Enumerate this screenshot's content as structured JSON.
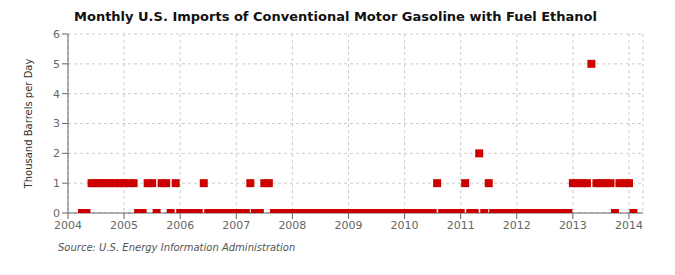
{
  "chart_data": {
    "type": "scatter",
    "title": "Monthly U.S. Imports of Conventional Motor Gasoline with Fuel Ethanol",
    "ylabel": "Thousand Barrels per Day",
    "annotations": [
      "Source: U.S. Energy Information Administration"
    ],
    "color": "#CC0000",
    "marker": "square",
    "grid": true,
    "xlim": [
      2004.0,
      2014.25
    ],
    "xticks": [
      2004,
      2005,
      2006,
      2007,
      2008,
      2009,
      2010,
      2011,
      2012,
      2013,
      2014
    ],
    "ylim": [
      0,
      6
    ],
    "yticks": [
      0,
      1,
      2,
      3,
      4,
      5,
      6
    ],
    "x": [
      2004.25,
      2004.33,
      2004.42,
      2004.5,
      2004.58,
      2004.67,
      2004.75,
      2004.83,
      2004.92,
      2005.0,
      2005.08,
      2005.17,
      2005.25,
      2005.33,
      2005.42,
      2005.5,
      2005.58,
      2005.67,
      2005.75,
      2005.83,
      2005.92,
      2006.0,
      2006.08,
      2006.17,
      2006.25,
      2006.33,
      2006.42,
      2006.5,
      2006.58,
      2006.67,
      2006.75,
      2006.83,
      2006.92,
      2007.0,
      2007.08,
      2007.17,
      2007.25,
      2007.33,
      2007.42,
      2007.5,
      2007.58,
      2007.67,
      2007.75,
      2007.83,
      2007.92,
      2008.0,
      2008.08,
      2008.17,
      2008.25,
      2008.33,
      2008.42,
      2008.5,
      2008.58,
      2008.67,
      2008.75,
      2008.83,
      2008.92,
      2009.0,
      2009.08,
      2009.17,
      2009.25,
      2009.33,
      2009.42,
      2009.5,
      2009.58,
      2009.67,
      2009.75,
      2009.83,
      2009.92,
      2010.0,
      2010.08,
      2010.17,
      2010.25,
      2010.33,
      2010.42,
      2010.5,
      2010.58,
      2010.67,
      2010.75,
      2010.83,
      2010.92,
      2011.0,
      2011.08,
      2011.17,
      2011.25,
      2011.33,
      2011.42,
      2011.5,
      2011.58,
      2011.67,
      2011.75,
      2011.83,
      2011.92,
      2012.0,
      2012.08,
      2012.17,
      2012.25,
      2012.33,
      2012.42,
      2012.5,
      2012.58,
      2012.67,
      2012.75,
      2012.83,
      2012.92,
      2013.0,
      2013.08,
      2013.17,
      2013.25,
      2013.33,
      2013.42,
      2013.5,
      2013.58,
      2013.67,
      2013.75,
      2013.83,
      2013.92,
      2014.0,
      2014.08
    ],
    "values": [
      0,
      0,
      1,
      1,
      1,
      1,
      1,
      1,
      1,
      1,
      1,
      1,
      0,
      0,
      1,
      1,
      0,
      1,
      1,
      0,
      1,
      0,
      0,
      0,
      0,
      0,
      1,
      0,
      0,
      0,
      0,
      0,
      0,
      0,
      0,
      0,
      1,
      0,
      0,
      1,
      1,
      0,
      0,
      0,
      0,
      0,
      0,
      0,
      0,
      0,
      0,
      0,
      0,
      0,
      0,
      0,
      0,
      0,
      0,
      0,
      0,
      0,
      0,
      0,
      0,
      0,
      0,
      0,
      0,
      0,
      0,
      0,
      0,
      0,
      0,
      0,
      1,
      0,
      0,
      0,
      0,
      0,
      1,
      0,
      0,
      2,
      0,
      1,
      0,
      0,
      0,
      0,
      0,
      0,
      0,
      0,
      0,
      0,
      0,
      0,
      0,
      0,
      0,
      0,
      0,
      1,
      1,
      1,
      1,
      5,
      1,
      1,
      1,
      1,
      0,
      1,
      1,
      1,
      0
    ]
  }
}
